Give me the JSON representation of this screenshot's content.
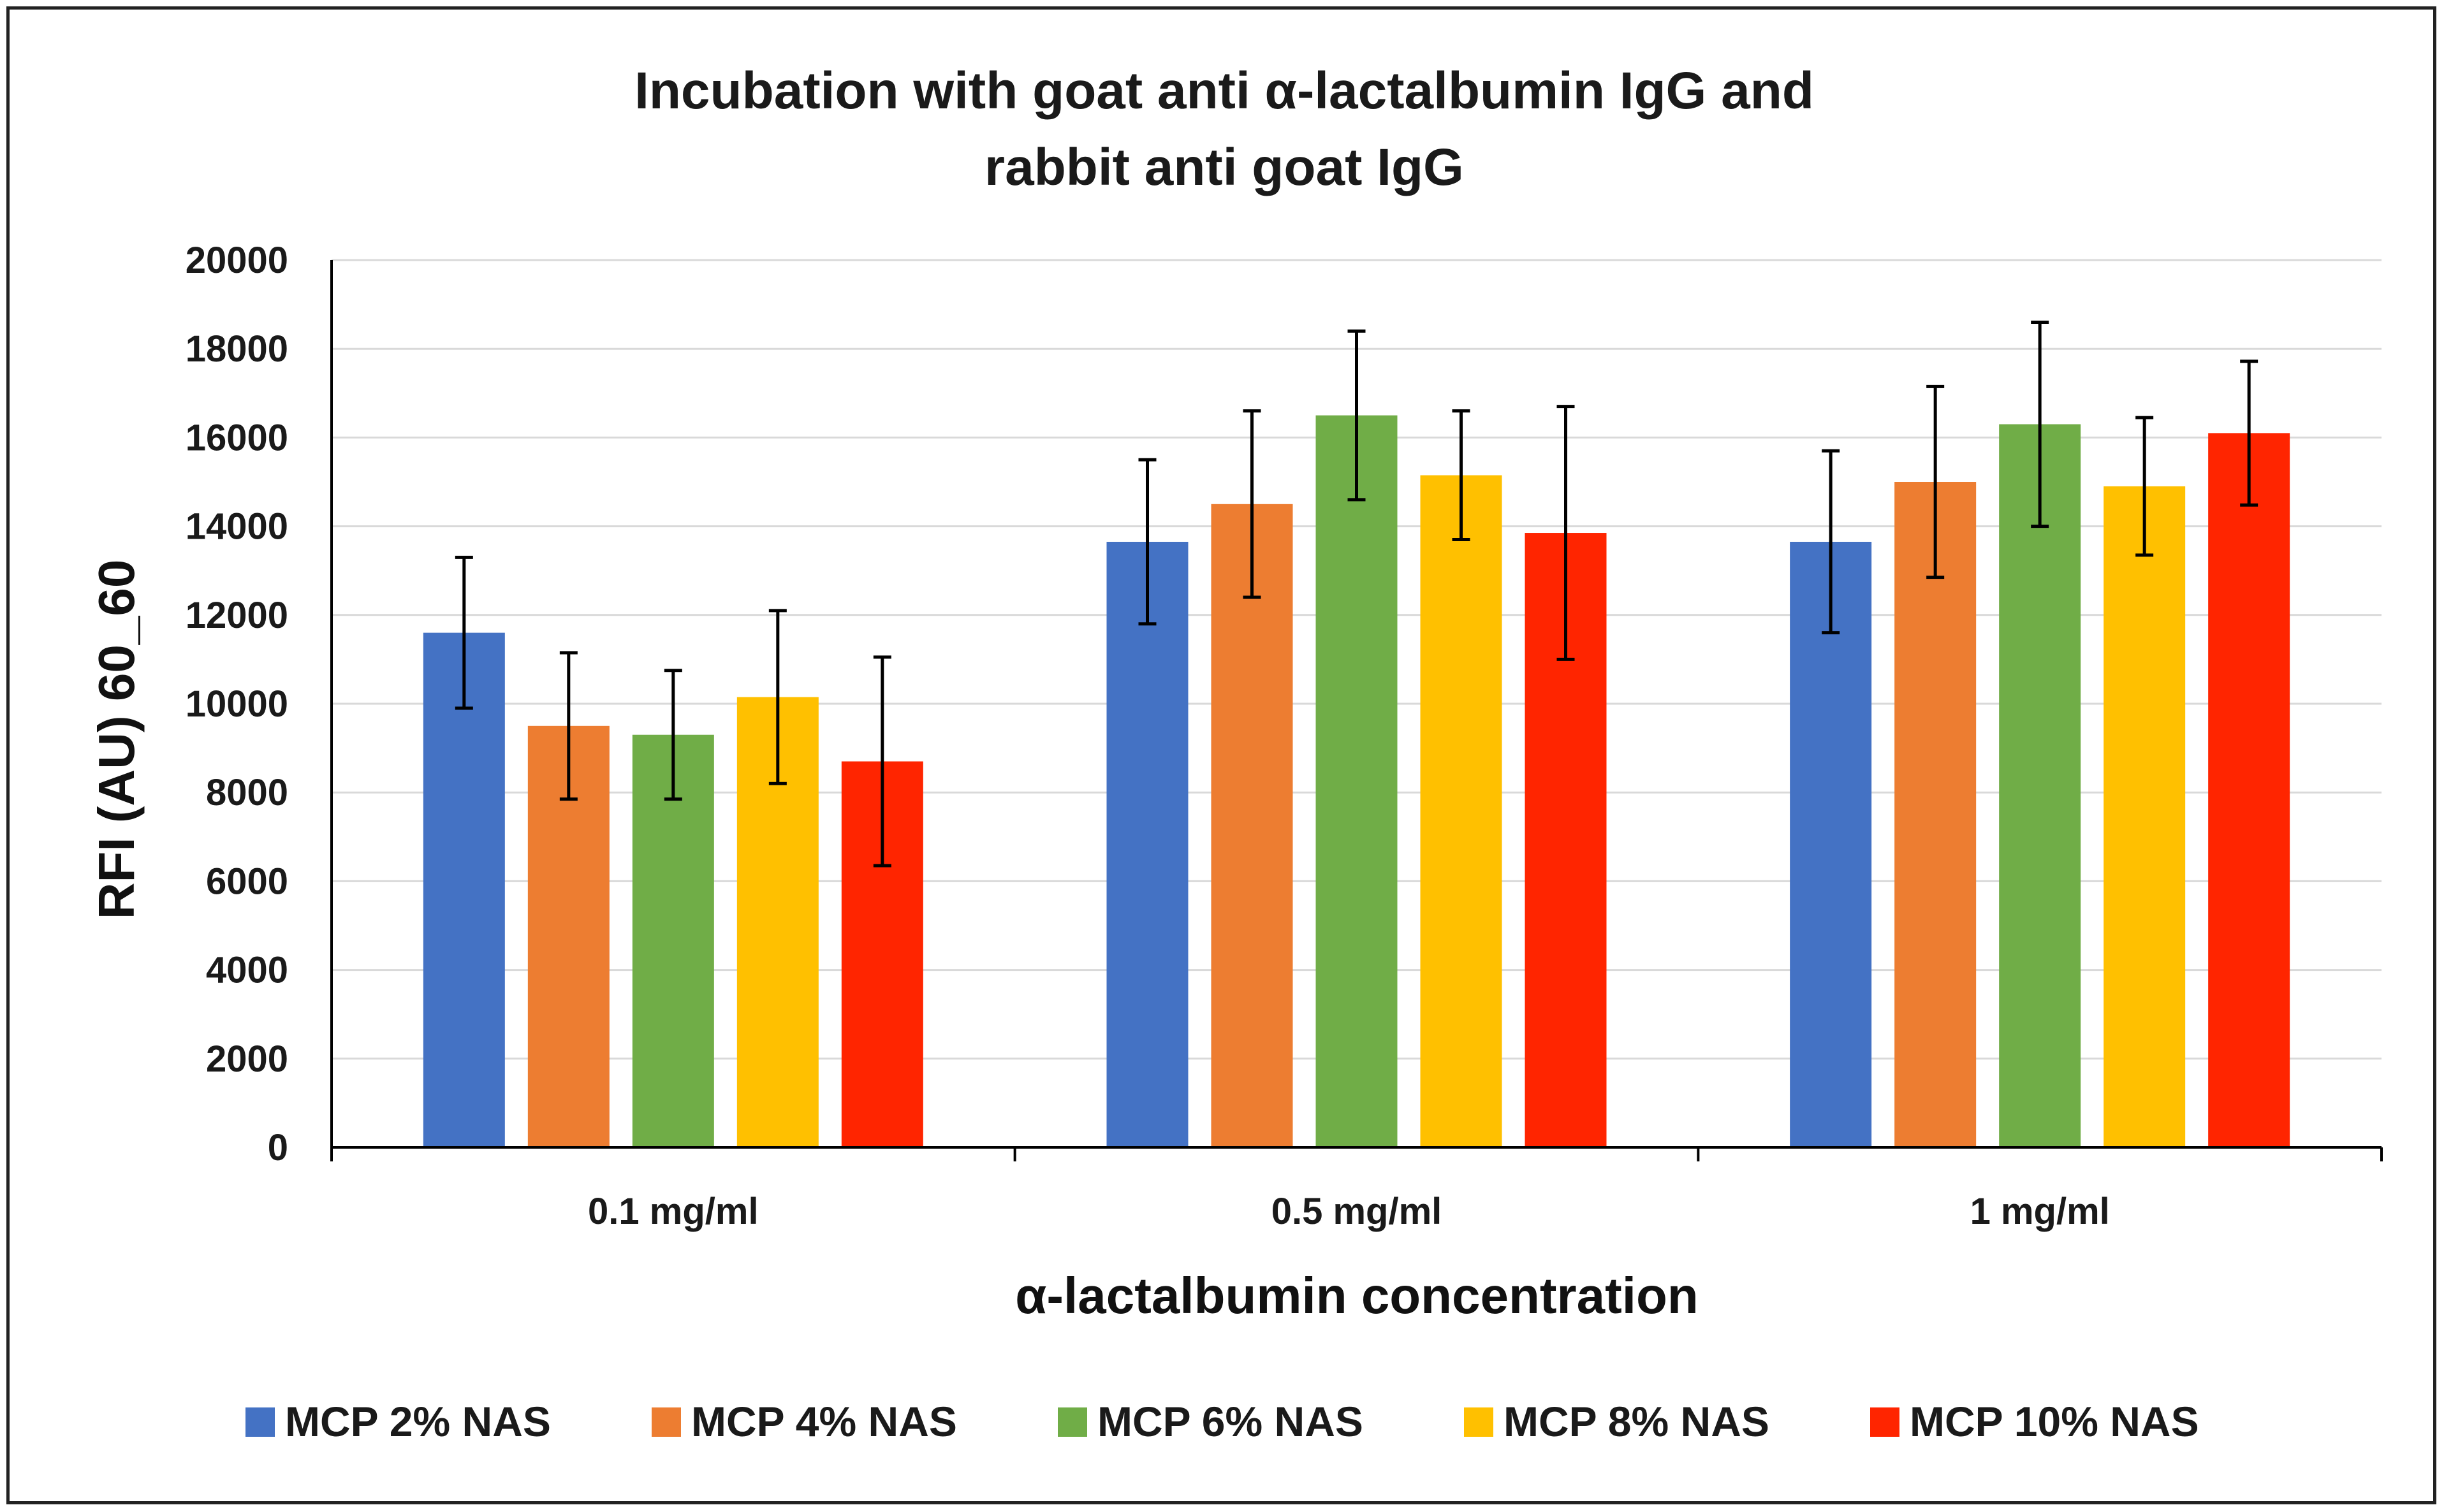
{
  "chart_data": {
    "type": "bar",
    "title_lines": [
      "Incubation with goat anti α-lactalbumin IgG and",
      "rabbit anti goat IgG"
    ],
    "xlabel": "α-lactalbumin  concentration",
    "ylabel": "RFI (AU) 60_60",
    "ylim": [
      0,
      20000
    ],
    "yticks": [
      0,
      2000,
      4000,
      6000,
      8000,
      10000,
      12000,
      14000,
      16000,
      18000,
      20000
    ],
    "grid": true,
    "legend_position": "bottom",
    "categories": [
      "0.1 mg/ml",
      "0.5 mg/ml",
      "1 mg/ml"
    ],
    "series": [
      {
        "name": "MCP 2% NAS",
        "color": "#4472C4",
        "values": [
          11600,
          13650,
          13650
        ],
        "errors": [
          1700,
          1850,
          2050
        ]
      },
      {
        "name": "MCP 4% NAS",
        "color": "#ED7D31",
        "values": [
          9500,
          14500,
          15000
        ],
        "errors": [
          1650,
          2100,
          2150
        ]
      },
      {
        "name": "MCP 6% NAS",
        "color": "#70AD47",
        "values": [
          9300,
          16500,
          16300
        ],
        "errors": [
          1450,
          1900,
          2300
        ]
      },
      {
        "name": "MCP 8% NAS",
        "color": "#FFC000",
        "values": [
          10150,
          15150,
          14900
        ],
        "errors": [
          1950,
          1450,
          1550
        ]
      },
      {
        "name": "MCP 10% NAS",
        "color": "#FF2500",
        "values": [
          8700,
          13850,
          16100
        ],
        "errors": [
          2350,
          2850,
          1620
        ]
      }
    ]
  }
}
